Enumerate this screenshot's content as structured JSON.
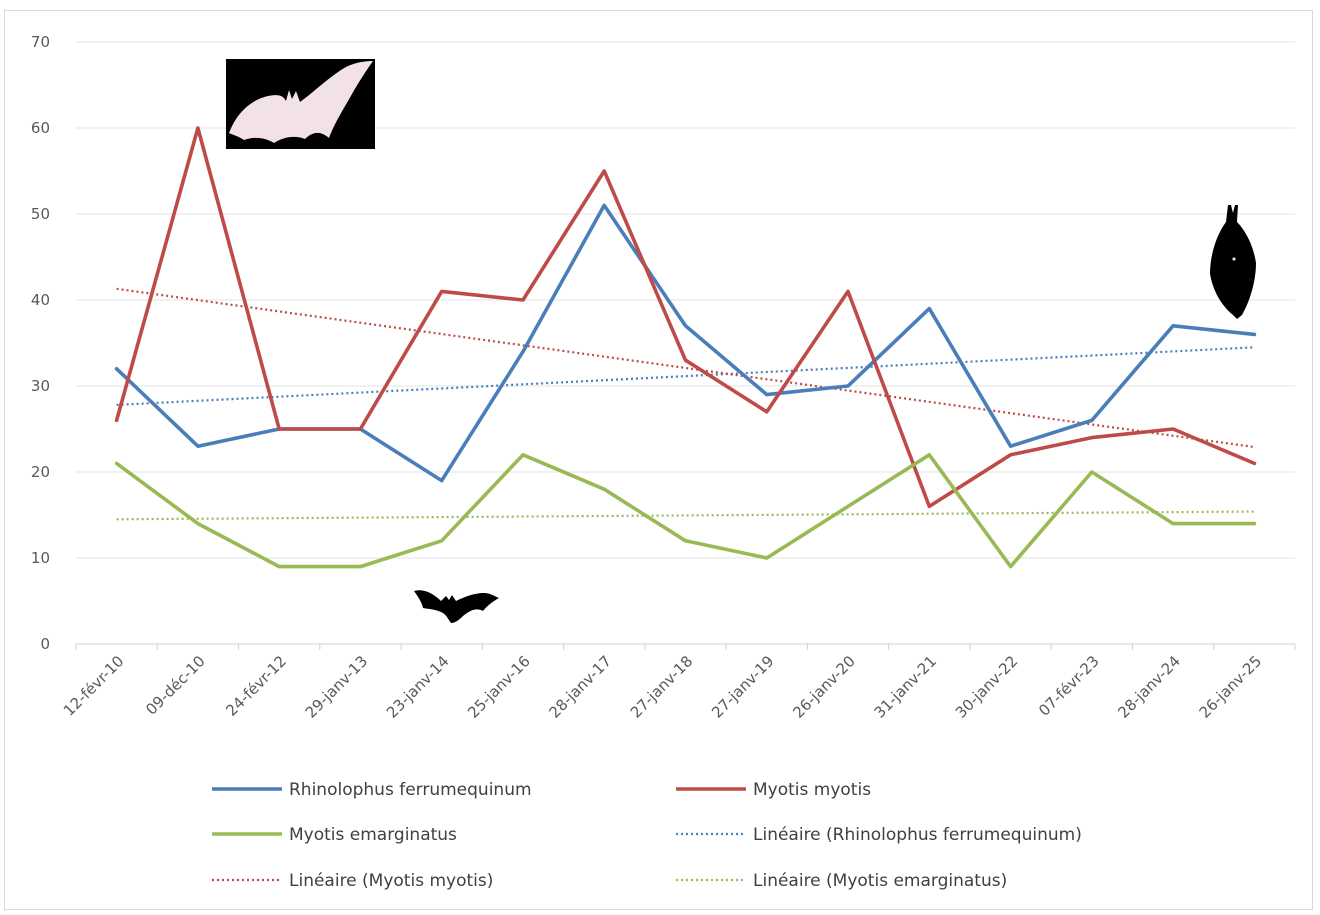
{
  "chart_data": {
    "type": "line",
    "title": "",
    "xlabel": "",
    "ylabel": "",
    "ylim": [
      0,
      70
    ],
    "yticks": [
      0,
      10,
      20,
      30,
      40,
      50,
      60,
      70
    ],
    "grid": true,
    "legend_position": "bottom",
    "categories": [
      "12-févr-10",
      "09-déc-10",
      "24-févr-12",
      "29-janv-13",
      "23-janv-14",
      "25-janv-16",
      "28-janv-17",
      "27-janv-18",
      "27-janv-19",
      "26-janv-20",
      "31-janv-21",
      "30-janv-22",
      "07-févr-23",
      "28-janv-24",
      "26-janv-25"
    ],
    "series": [
      {
        "name": "Rhinolophus ferrumequinum",
        "color": "#4a7ebb",
        "values": [
          32,
          23,
          25,
          25,
          19,
          34,
          51,
          37,
          29,
          30,
          39,
          23,
          26,
          37,
          36
        ]
      },
      {
        "name": "Myotis myotis",
        "color": "#be4b48",
        "values": [
          26,
          60,
          25,
          25,
          41,
          40,
          55,
          33,
          27,
          41,
          16,
          22,
          24,
          25,
          21
        ]
      },
      {
        "name": "Myotis emarginatus",
        "color": "#98b954",
        "values": [
          21,
          14,
          9,
          9,
          12,
          22,
          18,
          12,
          10,
          16,
          22,
          9,
          20,
          14,
          14
        ]
      }
    ],
    "trendlines": [
      {
        "name": "Linéaire (Rhinolophus ferrumequinum)",
        "color": "#4a7ebb",
        "start": 27.8,
        "end": 34.5
      },
      {
        "name": "Linéaire (Myotis myotis)",
        "color": "#be4b48",
        "start": 41.3,
        "end": 22.9
      },
      {
        "name": "Linéaire (Myotis emarginatus)",
        "color": "#98b954",
        "start": 14.5,
        "end": 15.4
      }
    ],
    "legend_order": [
      "Rhinolophus ferrumequinum",
      "Myotis myotis",
      "Myotis emarginatus",
      "Linéaire (Rhinolophus ferrumequinum)",
      "Linéaire (Myotis myotis)",
      "Linéaire (Myotis emarginatus)"
    ]
  },
  "images": [
    {
      "name": "bat-flying-pink-icon"
    },
    {
      "name": "bat-flying-black-icon"
    },
    {
      "name": "bat-hanging-icon"
    }
  ]
}
